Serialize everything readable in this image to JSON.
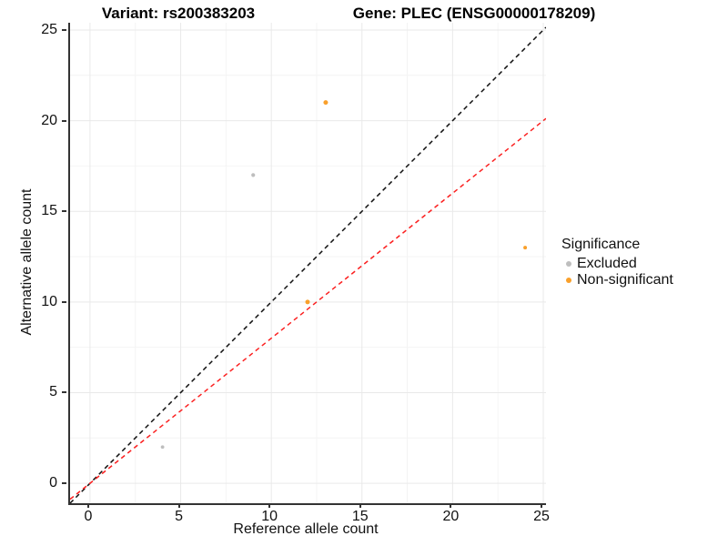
{
  "titles": {
    "variant": "Variant: rs200383203",
    "gene": "Gene: PLEC (ENSG00000178209)"
  },
  "legend": {
    "title": "Significance",
    "items": [
      {
        "label": "Excluded",
        "color": "#BEBEBE"
      },
      {
        "label": "Non-significant",
        "color": "#F9A02B"
      }
    ]
  },
  "colors": {
    "excluded": "#BEBEBE",
    "non_significant": "#F9A02B",
    "identity_line": "#111111",
    "ratio_line": "#FB2020",
    "axis": "#333333",
    "grid_major": "#E9E9E9",
    "grid_minor": "#F4F4F4",
    "tick_text": "#111111"
  },
  "chart_data": {
    "type": "scatter",
    "title_left": "Variant: rs200383203",
    "title_right": "Gene: PLEC (ENSG00000178209)",
    "xlabel": "Reference allele count",
    "ylabel": "Alternative allele count",
    "xlim": [
      -1.1,
      25.15
    ],
    "ylim": [
      -1.1,
      25.4
    ],
    "xticks": [
      0,
      5,
      10,
      15,
      20,
      25
    ],
    "yticks": [
      0,
      5,
      10,
      15,
      20,
      25
    ],
    "xminor": [
      2.5,
      7.5,
      12.5,
      17.5,
      22.5
    ],
    "yminor": [
      2.5,
      7.5,
      12.5,
      17.5,
      22.5
    ],
    "grid": true,
    "legend_position": "right",
    "legend_title": "Significance",
    "series": [
      {
        "name": "Excluded",
        "color": "#BEBEBE",
        "points": [
          {
            "x": 9,
            "y": 17,
            "r": 2.1
          },
          {
            "x": 4,
            "y": 2,
            "r": 1.9
          }
        ]
      },
      {
        "name": "Non-significant",
        "color": "#F9A02B",
        "points": [
          {
            "x": 13,
            "y": 21,
            "r": 2.5
          },
          {
            "x": 24,
            "y": 13,
            "r": 2.0
          },
          {
            "x": 12,
            "y": 10,
            "r": 2.5
          }
        ]
      }
    ],
    "lines": [
      {
        "name": "identity",
        "slope": 1,
        "intercept": 0,
        "color": "#111111",
        "dash": "5,4",
        "width": 1.5
      },
      {
        "name": "expected-ratio",
        "slope": 0.8,
        "intercept": 0,
        "color": "#FB2020",
        "dash": "5,4",
        "width": 1.5
      }
    ]
  }
}
